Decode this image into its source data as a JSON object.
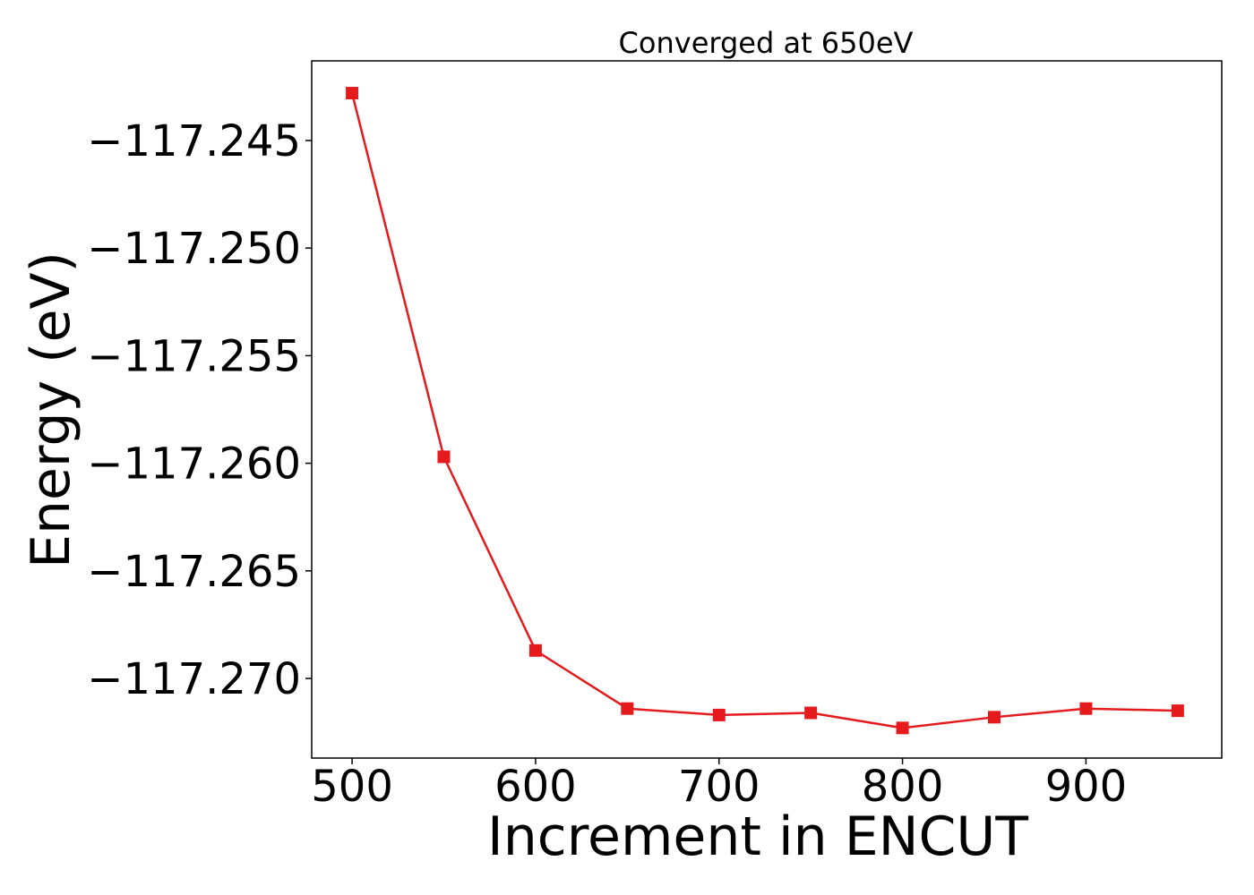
{
  "chart_data": {
    "type": "line",
    "title": "Converged at 650eV",
    "xlabel": "Increment in ENCUT",
    "ylabel": "Energy (eV)",
    "x": [
      500,
      550,
      600,
      650,
      700,
      750,
      800,
      850,
      900,
      950
    ],
    "series": [
      {
        "values": [
          -117.2428,
          -117.2597,
          -117.2687,
          -117.2714,
          -117.2717,
          -117.2716,
          -117.2723,
          -117.2718,
          -117.2714,
          -117.2715
        ],
        "color": "#e41a1c",
        "marker": "square"
      }
    ],
    "xlim": [
      478,
      974
    ],
    "ylim": [
      -117.2737,
      -117.2413
    ],
    "xticks": [
      500,
      600,
      700,
      800,
      900
    ],
    "xtick_labels": [
      "500",
      "600",
      "700",
      "800",
      "900"
    ],
    "yticks": [
      -117.245,
      -117.25,
      -117.255,
      -117.26,
      -117.265,
      -117.27
    ],
    "ytick_labels": [
      "−117.245",
      "−117.250",
      "−117.255",
      "−117.260",
      "−117.265",
      "−117.270"
    ],
    "grid": false,
    "legend": false
  }
}
